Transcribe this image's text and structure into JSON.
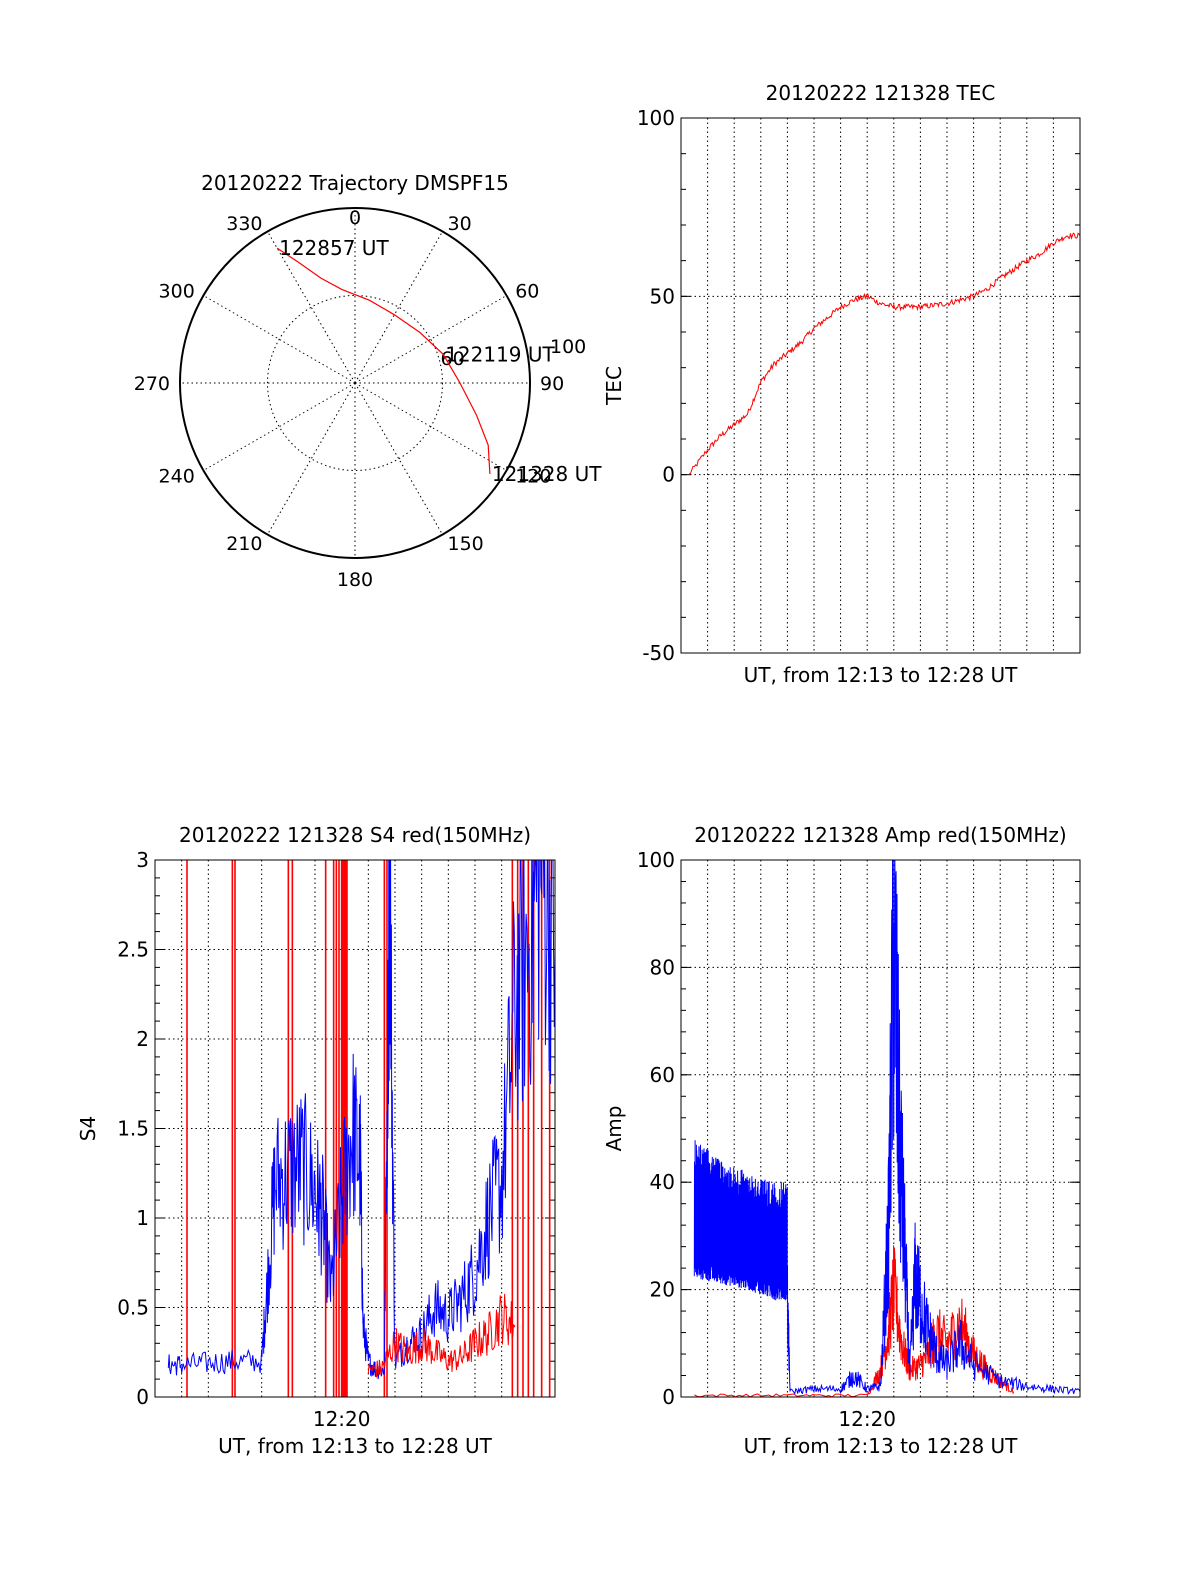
{
  "colors": {
    "red": "#ff0000",
    "blue": "#0000ff",
    "axis": "#000000",
    "background": "#ffffff"
  },
  "chart_data": [
    {
      "id": "trajectory",
      "type": "polar",
      "title": "20120222 Trajectory DMSPF15",
      "angle_labels": [
        "0",
        "30",
        "60",
        "90",
        "120",
        "150",
        "180",
        "210",
        "240",
        "270",
        "300",
        "330"
      ],
      "radius_labels": [
        "60",
        "100"
      ],
      "rlim": [
        0,
        100
      ],
      "grid": true,
      "series": [
        {
          "color": "#ff0000",
          "points": [
            {
              "az": 330,
              "r": 89
            },
            {
              "az": 335,
              "r": 76
            },
            {
              "az": 342,
              "r": 63
            },
            {
              "az": 352,
              "r": 54
            },
            {
              "az": 10,
              "r": 48
            },
            {
              "az": 30,
              "r": 45
            },
            {
              "az": 52,
              "r": 47
            },
            {
              "az": 72,
              "r": 53
            },
            {
              "az": 90,
              "r": 60
            },
            {
              "az": 105,
              "r": 72
            },
            {
              "az": 115,
              "r": 84
            },
            {
              "az": 124,
              "r": 93
            }
          ]
        }
      ],
      "annotations": [
        {
          "text": "122857 UT",
          "az": 330,
          "r": 89
        },
        {
          "text": "122119 UT",
          "az": 72,
          "r": 53
        },
        {
          "text": "121328 UT",
          "az": 124,
          "r": 93
        }
      ]
    },
    {
      "id": "tec",
      "type": "line",
      "title": "20120222 121328 TEC",
      "xlabel": "UT, from 12:13 to 12:28 UT",
      "ylabel": "TEC",
      "xlim": [
        0,
        15
      ],
      "ylim": [
        -50,
        100
      ],
      "yticks": [
        -50,
        0,
        50,
        100
      ],
      "xticks": [],
      "grid": true,
      "series": [
        {
          "color": "#ff0000",
          "x": [
            0.3,
            1.0,
            1.5,
            2.0,
            2.5,
            3.0,
            3.5,
            4.0,
            4.5,
            5.0,
            5.5,
            6.0,
            6.5,
            7.0,
            7.5,
            8.0,
            8.5,
            9.0,
            9.5,
            10.0,
            10.5,
            11.0,
            11.5,
            12.0,
            12.5,
            13.0,
            13.5,
            14.0,
            14.5,
            15.0
          ],
          "y": [
            0,
            7,
            11,
            14,
            17,
            26,
            31,
            34,
            37,
            41,
            44,
            47,
            49,
            50,
            48,
            47,
            47,
            47,
            47.5,
            48,
            49,
            50,
            52,
            55,
            57.5,
            60,
            62,
            65,
            67,
            67
          ]
        }
      ]
    },
    {
      "id": "s4",
      "type": "line",
      "title": "20120222 121328 S4 red(150MHz)",
      "xlabel": "UT, from 12:13 to 12:28 UT",
      "ylabel": "S4",
      "xlim": [
        0,
        15
      ],
      "ylim": [
        0,
        3
      ],
      "yticks": [
        0,
        0.5,
        1,
        1.5,
        2,
        2.5,
        3
      ],
      "ytick_labels": [
        "0",
        "0.5",
        "1",
        "1.5",
        "2",
        "2.5",
        "3"
      ],
      "xticks": [
        7
      ],
      "xtick_labels": [
        "12:20"
      ],
      "grid": true,
      "series": [
        {
          "color": "#0000ff",
          "x": [
            0.5,
            1.0,
            2.0,
            3.0,
            4.0,
            4.2,
            4.5,
            5.0,
            5.5,
            6.0,
            6.3,
            6.6,
            7.0,
            7.4,
            7.7,
            7.8,
            8.0,
            8.3,
            8.6,
            8.8,
            9.0,
            9.5,
            10.0,
            10.5,
            11.0,
            11.5,
            12.0,
            12.5,
            13.0,
            13.5,
            14.0,
            14.5,
            15.0
          ],
          "y": [
            0.18,
            0.18,
            0.19,
            0.2,
            0.2,
            0.6,
            1.2,
            1.25,
            1.3,
            1.15,
            1.0,
            0.6,
            1.1,
            1.5,
            1.3,
            0.4,
            0.2,
            0.15,
            0.15,
            3.0,
            0.2,
            0.3,
            0.35,
            0.5,
            0.45,
            0.55,
            0.7,
            1.0,
            1.2,
            2.2,
            2.5,
            3.0,
            2.5
          ]
        },
        {
          "color": "#ff0000",
          "x": [
            8.0,
            8.5,
            9.0,
            9.5,
            10.0,
            10.5,
            11.0,
            11.5,
            12.0,
            12.5,
            13.0,
            13.5
          ],
          "y": [
            0.15,
            0.16,
            0.3,
            0.25,
            0.3,
            0.25,
            0.2,
            0.22,
            0.3,
            0.35,
            0.45,
            0.4
          ]
        }
      ],
      "red_spikes": [
        1.2,
        2.9,
        3.0,
        5.0,
        5.15,
        6.4,
        6.7,
        6.8,
        6.9,
        7.0,
        7.05,
        7.1,
        7.15,
        7.2,
        8.6,
        8.7,
        13.4,
        13.6,
        13.8,
        14.0,
        14.2,
        14.5,
        14.8
      ]
    },
    {
      "id": "amp",
      "type": "line",
      "title": "20120222 121328 Amp red(150MHz)",
      "xlabel": "UT, from 12:13 to 12:28 UT",
      "ylabel": "Amp",
      "xlim": [
        0,
        15
      ],
      "ylim": [
        0,
        100
      ],
      "yticks": [
        0,
        20,
        40,
        60,
        80,
        100
      ],
      "xticks": [
        7
      ],
      "xtick_labels": [
        "12:20"
      ],
      "grid": true,
      "series": [
        {
          "color": "#0000ff",
          "band_low": [
            [
              0.5,
              22
            ],
            [
              1.5,
              21
            ],
            [
              2.5,
              20
            ],
            [
              3.5,
              18
            ],
            [
              4.0,
              18
            ]
          ],
          "band_high": [
            [
              0.5,
              48
            ],
            [
              1.5,
              44
            ],
            [
              2.5,
              42
            ],
            [
              3.5,
              40
            ],
            [
              4.0,
              40
            ]
          ],
          "x": [
            4.0,
            4.1,
            5.0,
            6.0,
            6.5,
            7.0,
            7.5,
            7.8,
            8.0,
            8.2,
            8.4,
            8.6,
            8.8,
            9.0,
            9.3,
            9.6,
            10.0,
            10.5,
            11.0,
            12.0,
            13.0,
            14.0,
            15.0
          ],
          "y": [
            18,
            1,
            1.5,
            1.5,
            4,
            1.5,
            2,
            30,
            85,
            50,
            28,
            5,
            22,
            18,
            12,
            8,
            6,
            10,
            6,
            3,
            2,
            1.5,
            1
          ]
        },
        {
          "color": "#ff0000",
          "x": [
            0.5,
            4.0,
            7.0,
            7.5,
            7.8,
            8.0,
            8.3,
            8.6,
            9.0,
            9.3,
            9.6,
            10.0,
            10.5,
            11.0,
            11.5,
            12.0,
            12.5
          ],
          "y": [
            0.3,
            0.3,
            0.3,
            5,
            12,
            20,
            10,
            5,
            6,
            8,
            12,
            10,
            14,
            8,
            5,
            3,
            1
          ]
        }
      ]
    }
  ]
}
